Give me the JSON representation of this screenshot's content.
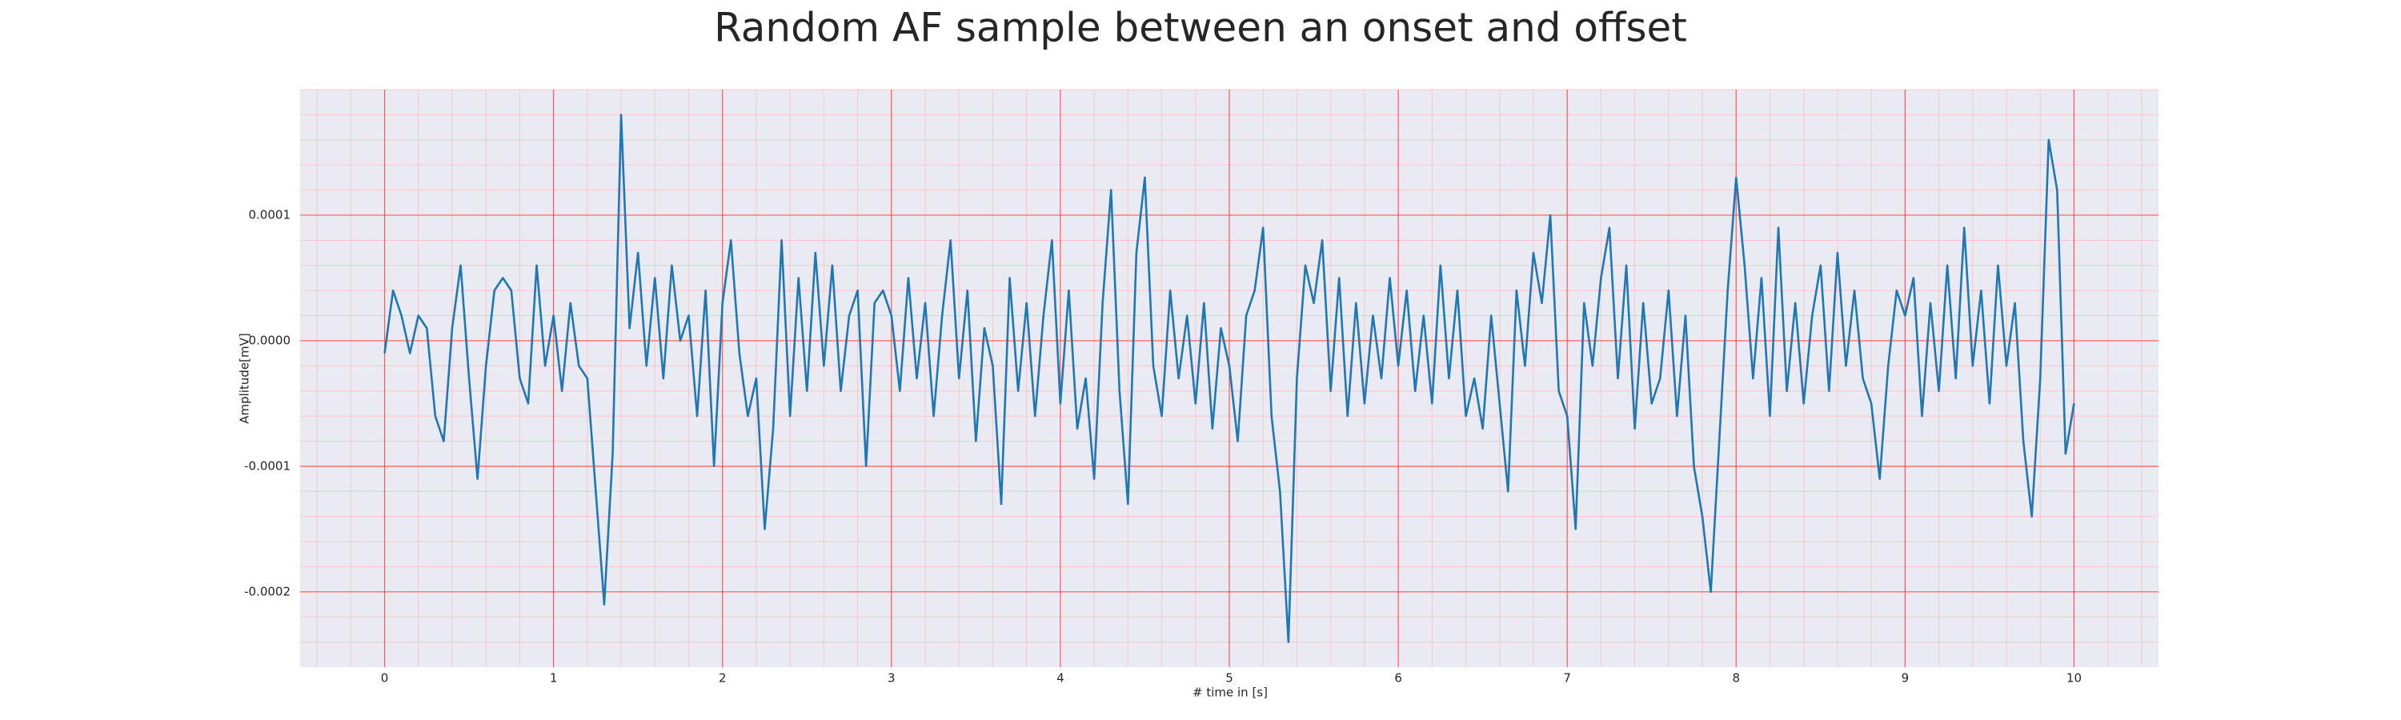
{
  "chart_data": {
    "type": "line",
    "title": "Random AF sample between an onset and offset",
    "xlabel": "# time in [s]",
    "ylabel": "Amplitude[mV]",
    "color": "#1f77b4",
    "grid": true,
    "minor_grid": true,
    "xlim": [
      -0.5,
      10.5
    ],
    "ylim": [
      -0.00026,
      0.0002
    ],
    "xticks": [
      0,
      1,
      2,
      3,
      4,
      5,
      6,
      7,
      8,
      9,
      10
    ],
    "yticks": [
      -0.0002,
      -0.0001,
      {
        "value": 0,
        "label": "0.0000"
      },
      0.0001
    ],
    "x": [
      0,
      0.05,
      0.1,
      0.15,
      0.2,
      0.25,
      0.3,
      0.35,
      0.4,
      0.45,
      0.5,
      0.55,
      0.6,
      0.65,
      0.7,
      0.75,
      0.8,
      0.85,
      0.9,
      0.95,
      1,
      1.05,
      1.1,
      1.15,
      1.2,
      1.25,
      1.3,
      1.35,
      1.4,
      1.45,
      1.5,
      1.55,
      1.6,
      1.65,
      1.7,
      1.75,
      1.8,
      1.85,
      1.9,
      1.95,
      2,
      2.05,
      2.1,
      2.15,
      2.2,
      2.25,
      2.3,
      2.35,
      2.4,
      2.45,
      2.5,
      2.55,
      2.6,
      2.65,
      2.7,
      2.75,
      2.8,
      2.85,
      2.9,
      2.95,
      3,
      3.05,
      3.1,
      3.15,
      3.2,
      3.25,
      3.3,
      3.35,
      3.4,
      3.45,
      3.5,
      3.55,
      3.6,
      3.65,
      3.7,
      3.75,
      3.8,
      3.85,
      3.9,
      3.95,
      4,
      4.05,
      4.1,
      4.15,
      4.2,
      4.25,
      4.3,
      4.35,
      4.4,
      4.45,
      4.5,
      4.55,
      4.6,
      4.65,
      4.7,
      4.75,
      4.8,
      4.85,
      4.9,
      4.95,
      5,
      5.05,
      5.1,
      5.15,
      5.2,
      5.25,
      5.3,
      5.35,
      5.4,
      5.45,
      5.5,
      5.55,
      5.6,
      5.65,
      5.7,
      5.75,
      5.8,
      5.85,
      5.9,
      5.95,
      6,
      6.05,
      6.1,
      6.15,
      6.2,
      6.25,
      6.3,
      6.35,
      6.4,
      6.45,
      6.5,
      6.55,
      6.6,
      6.65,
      6.7,
      6.75,
      6.8,
      6.85,
      6.9,
      6.95,
      7,
      7.05,
      7.1,
      7.15,
      7.2,
      7.25,
      7.3,
      7.35,
      7.4,
      7.45,
      7.5,
      7.55,
      7.6,
      7.65,
      7.7,
      7.75,
      7.8,
      7.85,
      7.9,
      7.95,
      8,
      8.05,
      8.1,
      8.15,
      8.2,
      8.25,
      8.3,
      8.35,
      8.4,
      8.45,
      8.5,
      8.55,
      8.6,
      8.65,
      8.7,
      8.75,
      8.8,
      8.85,
      8.9,
      8.95,
      9,
      9.05,
      9.1,
      9.15,
      9.2,
      9.25,
      9.3,
      9.35,
      9.4,
      9.45,
      9.5,
      9.55,
      9.6,
      9.65,
      9.7,
      9.75,
      9.8,
      9.85,
      9.9,
      9.95,
      10
    ],
    "values": [
      -1e-05,
      4e-05,
      2e-05,
      -1e-05,
      2e-05,
      1e-05,
      -6e-05,
      -8e-05,
      1e-05,
      6e-05,
      -3e-05,
      -0.00011,
      -2e-05,
      4e-05,
      5e-05,
      4e-05,
      -3e-05,
      -5e-05,
      6e-05,
      -2e-05,
      2e-05,
      -4e-05,
      3e-05,
      -2e-05,
      -3e-05,
      -0.00012,
      -0.00021,
      -9e-05,
      0.00018,
      1e-05,
      7e-05,
      -2e-05,
      5e-05,
      -3e-05,
      6e-05,
      0,
      2e-05,
      -6e-05,
      4e-05,
      -0.0001,
      3e-05,
      8e-05,
      -1e-05,
      -6e-05,
      -3e-05,
      -0.00015,
      -7e-05,
      8e-05,
      -6e-05,
      5e-05,
      -4e-05,
      7e-05,
      -2e-05,
      6e-05,
      -4e-05,
      2e-05,
      4e-05,
      -0.0001,
      3e-05,
      4e-05,
      2e-05,
      -4e-05,
      5e-05,
      -3e-05,
      3e-05,
      -6e-05,
      2e-05,
      8e-05,
      -3e-05,
      4e-05,
      -8e-05,
      1e-05,
      -2e-05,
      -0.00013,
      5e-05,
      -4e-05,
      3e-05,
      -6e-05,
      2e-05,
      8e-05,
      -5e-05,
      4e-05,
      -7e-05,
      -3e-05,
      -0.00011,
      3e-05,
      0.00012,
      -4e-05,
      -0.00013,
      7e-05,
      0.00013,
      -2e-05,
      -6e-05,
      4e-05,
      -3e-05,
      2e-05,
      -5e-05,
      3e-05,
      -7e-05,
      1e-05,
      -2e-05,
      -8e-05,
      2e-05,
      4e-05,
      9e-05,
      -6e-05,
      -0.00012,
      -0.00024,
      -3e-05,
      6e-05,
      3e-05,
      8e-05,
      -4e-05,
      5e-05,
      -6e-05,
      3e-05,
      -5e-05,
      2e-05,
      -3e-05,
      5e-05,
      -2e-05,
      4e-05,
      -4e-05,
      2e-05,
      -5e-05,
      6e-05,
      -3e-05,
      4e-05,
      -6e-05,
      -3e-05,
      -7e-05,
      2e-05,
      -5e-05,
      -0.00012,
      4e-05,
      -2e-05,
      7e-05,
      3e-05,
      0.0001,
      -4e-05,
      -6e-05,
      -0.00015,
      3e-05,
      -2e-05,
      5e-05,
      9e-05,
      -3e-05,
      6e-05,
      -7e-05,
      3e-05,
      -5e-05,
      -3e-05,
      4e-05,
      -6e-05,
      2e-05,
      -0.0001,
      -0.00014,
      -0.0002,
      -8e-05,
      4e-05,
      0.00013,
      6e-05,
      -3e-05,
      5e-05,
      -6e-05,
      9e-05,
      -4e-05,
      3e-05,
      -5e-05,
      2e-05,
      6e-05,
      -4e-05,
      7e-05,
      -2e-05,
      4e-05,
      -3e-05,
      -5e-05,
      -0.00011,
      -2e-05,
      4e-05,
      2e-05,
      5e-05,
      -6e-05,
      3e-05,
      -4e-05,
      6e-05,
      -3e-05,
      9e-05,
      -2e-05,
      4e-05,
      -5e-05,
      6e-05,
      -2e-05,
      3e-05,
      -8e-05,
      -0.00014,
      -3e-05,
      0.00016,
      0.00012,
      -9e-05,
      -5e-05
    ]
  }
}
